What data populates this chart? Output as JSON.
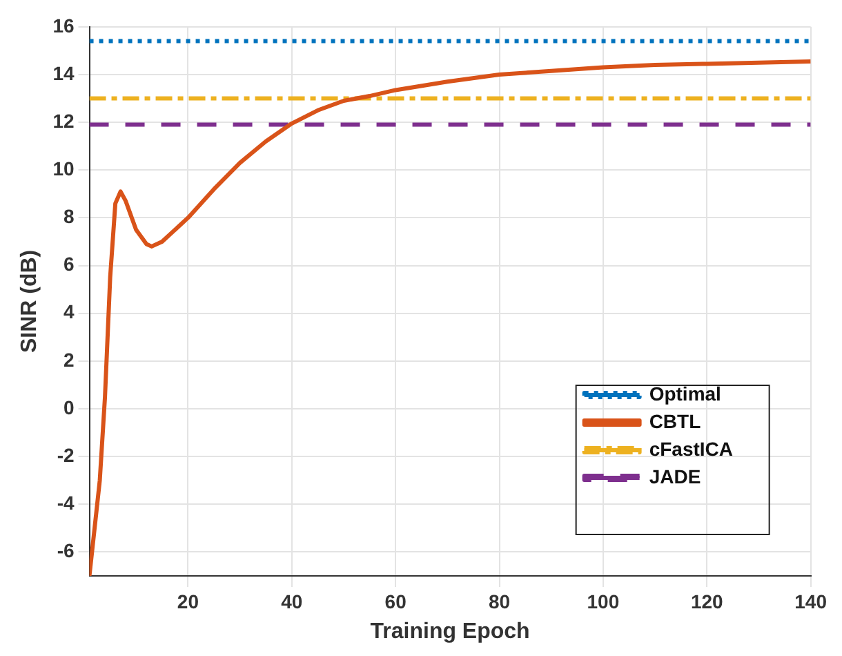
{
  "chart_data": {
    "type": "line",
    "xlabel": "Training Epoch",
    "ylabel": "SINR (dB)",
    "xlim": [
      1,
      140
    ],
    "xticks": [
      20,
      40,
      60,
      80,
      100,
      120,
      140
    ],
    "ylim": [
      -7,
      16
    ],
    "yticks": [
      -6,
      -4,
      -2,
      0,
      2,
      4,
      6,
      8,
      10,
      12,
      14,
      16
    ],
    "grid": true,
    "legend": "bottom right",
    "marker": "none",
    "series": [
      {
        "name": "Optimal",
        "color": "#0072bd",
        "line_style": "dotted",
        "x": [
          1,
          140
        ],
        "values": [
          15.4,
          15.4
        ]
      },
      {
        "name": "CBTL",
        "color": "#d95319",
        "line_style": "solid",
        "x": [
          1,
          3,
          4,
          5,
          6,
          7,
          8,
          10,
          12,
          13,
          15,
          20,
          25,
          30,
          35,
          40,
          45,
          50,
          55,
          60,
          70,
          80,
          90,
          100,
          110,
          120,
          130,
          140
        ],
        "values": [
          -7,
          -3,
          0.5,
          5.5,
          8.6,
          9.1,
          8.7,
          7.5,
          6.9,
          6.8,
          7,
          8,
          9.2,
          10.3,
          11.2,
          11.95,
          12.5,
          12.9,
          13.1,
          13.35,
          13.7,
          14,
          14.15,
          14.3,
          14.4,
          14.45,
          14.5,
          14.55
        ]
      },
      {
        "name": "cFastICA",
        "color": "#edb120",
        "line_style": "dashed",
        "x": [
          1,
          140
        ],
        "values": [
          13,
          13
        ]
      },
      {
        "name": "JADE",
        "color": "#7e2f8e",
        "line_style": "dashed",
        "x": [
          1,
          140
        ],
        "values": [
          11.9,
          11.9
        ]
      }
    ]
  }
}
